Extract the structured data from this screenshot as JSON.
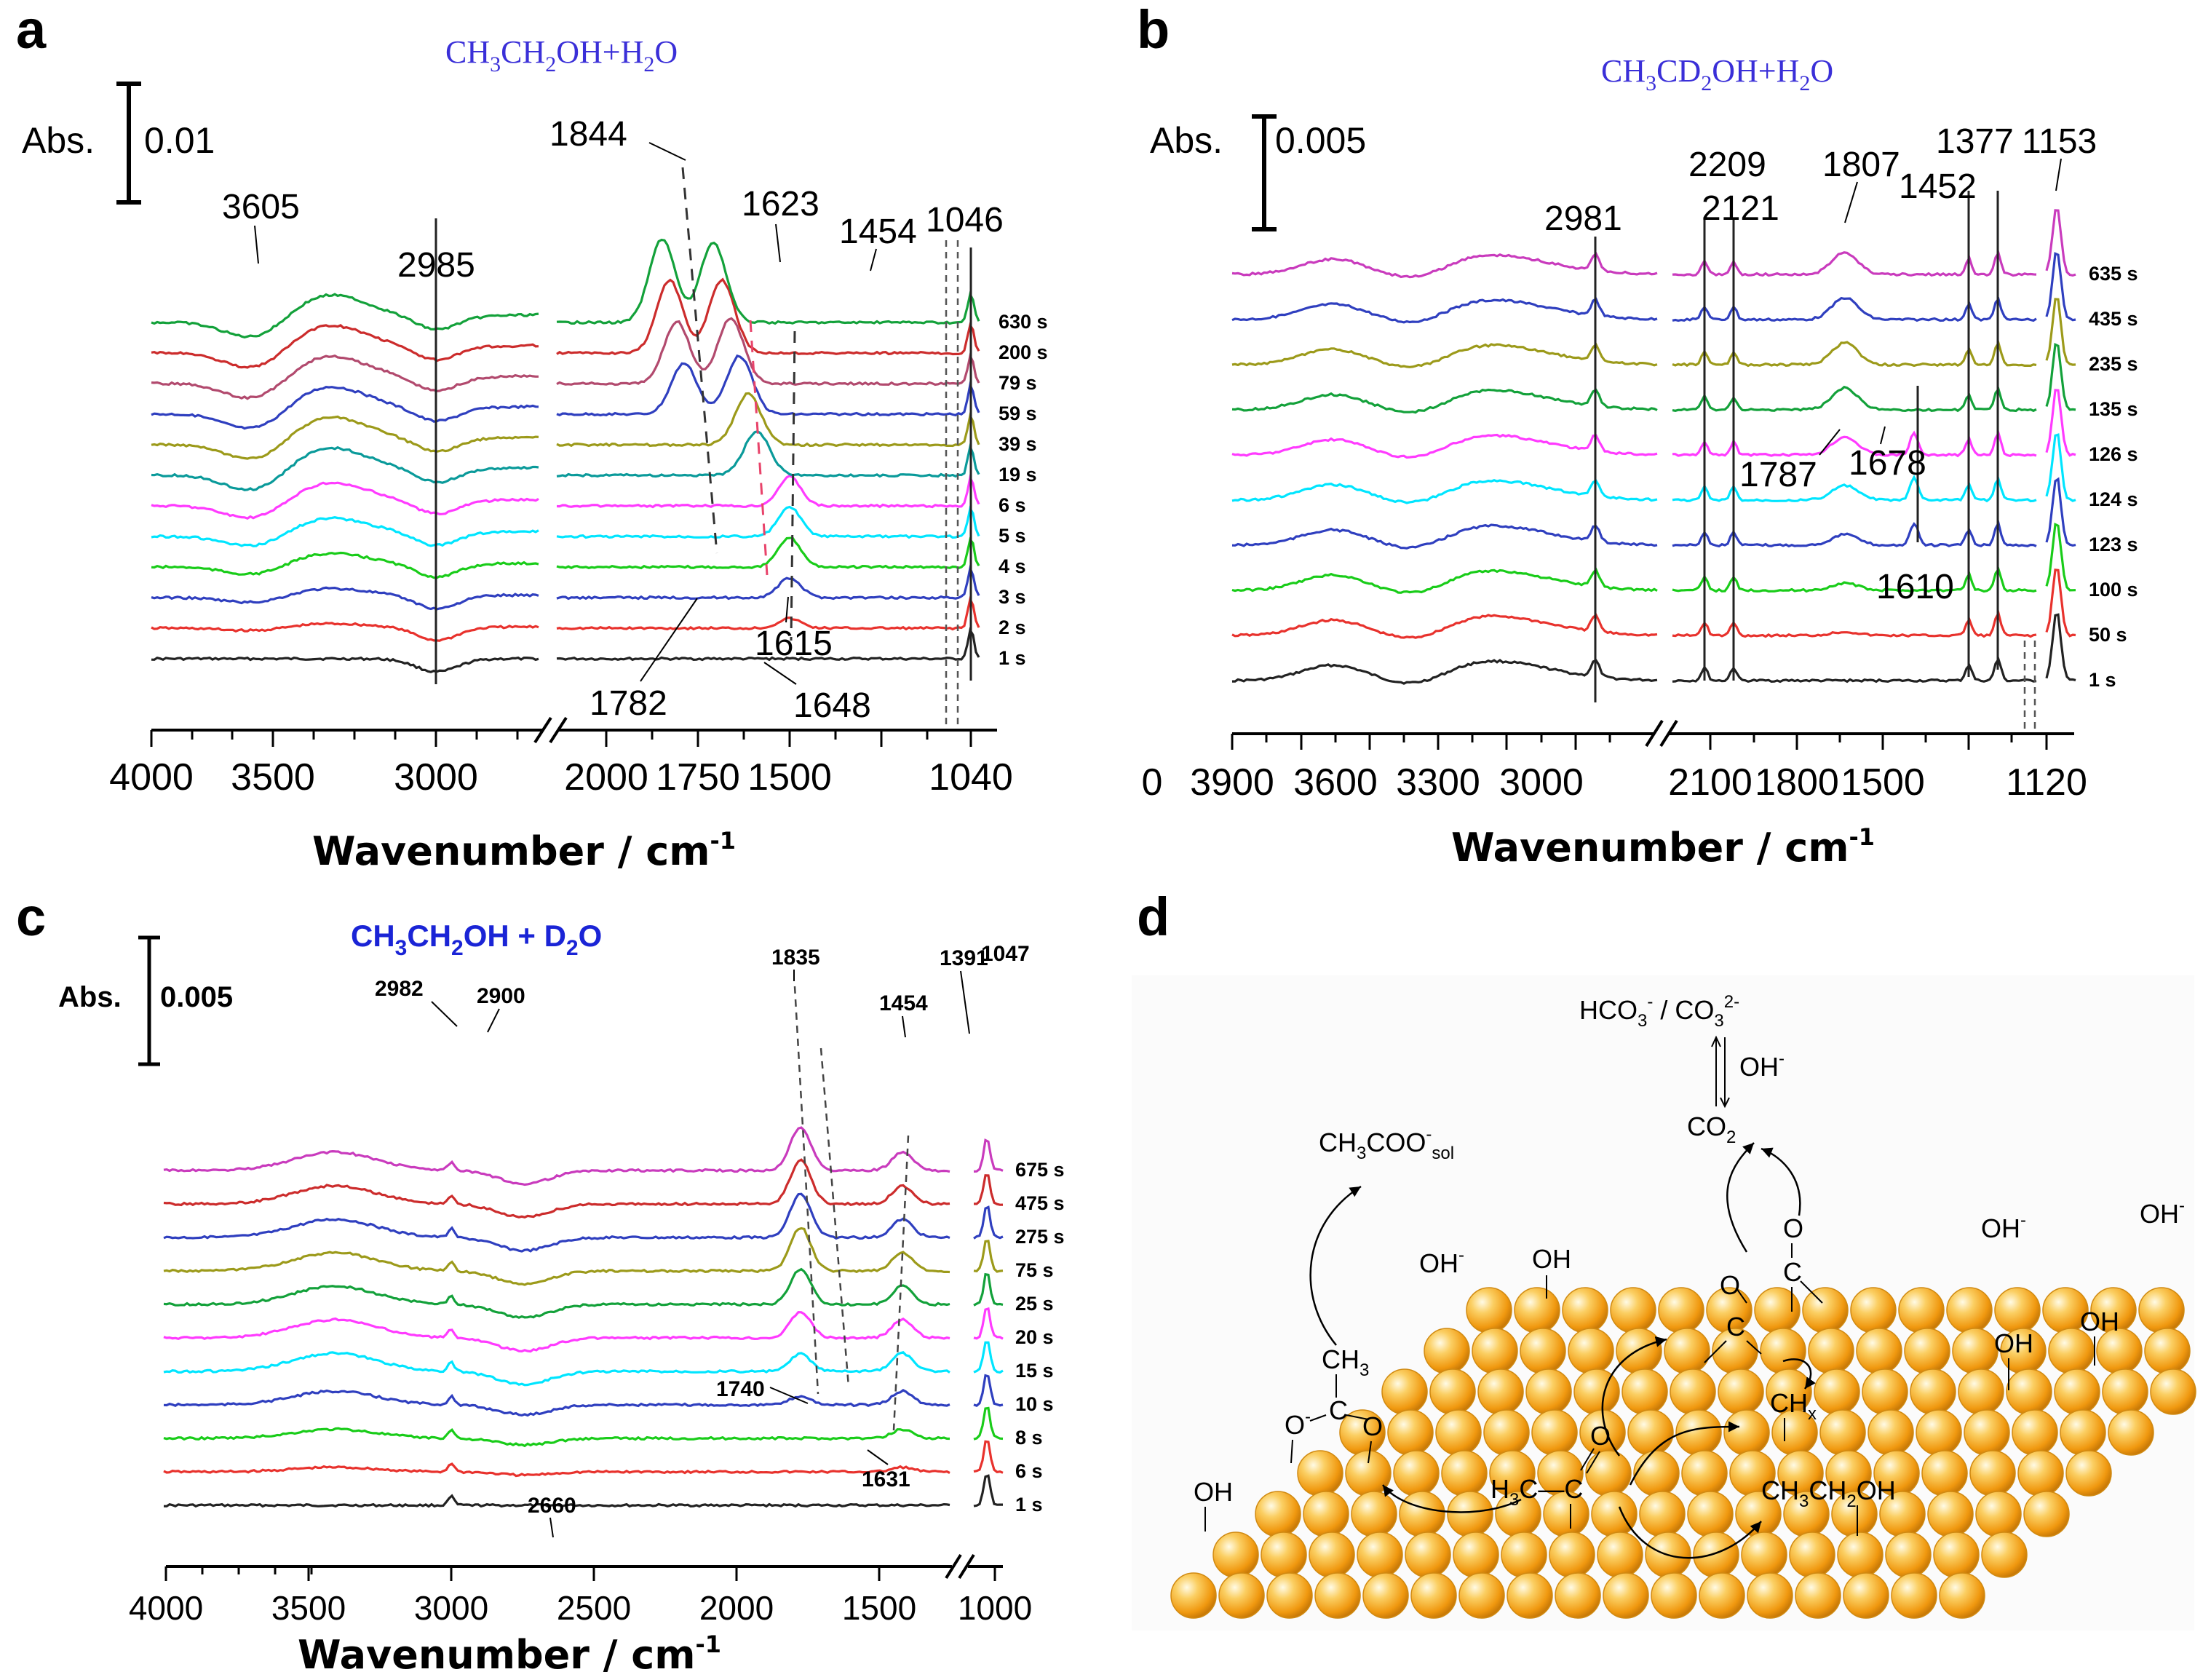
{
  "colors": {
    "title_blue": "#3a2fd8",
    "title_blue_c": "#1a24d6",
    "ball_orange": "#f3a21c",
    "trace_colors": [
      "#222222",
      "#e8322d",
      "#2f3fbf",
      "#19cc19",
      "#00e5ff",
      "#ff3bff",
      "#0a9a9a",
      "#9c9a1a",
      "#2f3fbf",
      "#b24a6e",
      "#cc2c2c",
      "#13a13a",
      "#c93bbd"
    ]
  },
  "chart_data": [
    {
      "id": "a",
      "type": "line",
      "panel_label": "a",
      "title": {
        "pre": "CH",
        "s1": "3",
        "m1": "CH",
        "s2": "2",
        "m2": "OH+H",
        "s3": "2",
        "post": "O"
      },
      "xlabel": {
        "base": "Wavenumber / cm",
        "sup": "-1"
      },
      "ylabel": "Abs.",
      "scale_bar": "0.01",
      "x_segments": [
        [
          4000,
          2400
        ],
        [
          2050,
          1040
        ]
      ],
      "x_ticks": [
        "4000",
        "3500",
        "3000",
        "2000",
        "1750",
        "1500",
        "1040"
      ],
      "series_labels": [
        "1 s",
        "2 s",
        "3 s",
        "4 s",
        "5 s",
        "6 s",
        "19 s",
        "39 s",
        "59 s",
        "79 s",
        "200 s",
        "630 s"
      ],
      "series_colors": [
        "#222222",
        "#e8322d",
        "#2f3fbf",
        "#19cc19",
        "#00e5ff",
        "#ff3bff",
        "#0a9a9a",
        "#9c9a1a",
        "#2f3fbf",
        "#b24a6e",
        "#cc2c2c",
        "#13a13a"
      ],
      "annotations": [
        "3605",
        "2985",
        "1844",
        "1623",
        "1454",
        "1046",
        "1782",
        "1648",
        "1615"
      ]
    },
    {
      "id": "b",
      "type": "line",
      "panel_label": "b",
      "title": {
        "pre": "CH",
        "s1": "3",
        "m1": "CD",
        "s2": "2",
        "m2": "OH+H",
        "s3": "2",
        "post": "O"
      },
      "xlabel": {
        "base": "Wavenumber / cm",
        "sup": "-1"
      },
      "ylabel": "Abs.",
      "scale_bar": "0.005",
      "x_segments": [
        [
          4000,
          2800
        ],
        [
          2200,
          1120
        ]
      ],
      "x_ticks": [
        "0",
        "3900",
        "3600",
        "3300",
        "3000",
        "2100",
        "1800",
        "1500",
        "1120"
      ],
      "series_labels": [
        "1 s",
        "50 s",
        "100 s",
        "123 s",
        "124 s",
        "126 s",
        "135 s",
        "235 s",
        "435 s",
        "635 s"
      ],
      "series_colors": [
        "#222222",
        "#e8322d",
        "#19cc19",
        "#2f3fbf",
        "#00e5ff",
        "#ff3bff",
        "#13a13a",
        "#9c9a1a",
        "#2f3fbf",
        "#c93bbd"
      ],
      "annotations": [
        "2981",
        "2209",
        "2121",
        "1807",
        "1452",
        "1377",
        "1153",
        "1787",
        "1678",
        "1610"
      ]
    },
    {
      "id": "c",
      "type": "line",
      "panel_label": "c",
      "title": {
        "pre": "CH",
        "s1": "3",
        "m1": "CH",
        "s2": "2",
        "m2": "OH + D",
        "s3": "2",
        "post": "O"
      },
      "xlabel": {
        "base": "Wavenumber / cm",
        "sup": "-1"
      },
      "ylabel": "Abs.",
      "scale_bar": "0.005",
      "x_segments": [
        [
          4000,
          1300
        ],
        [
          1130,
          1000
        ]
      ],
      "x_ticks": [
        "4000",
        "3500",
        "3000",
        "2500",
        "2000",
        "1500",
        "1000"
      ],
      "series_labels": [
        "1 s",
        "6 s",
        "8 s",
        "10 s",
        "15 s",
        "20 s",
        "25 s",
        "75 s",
        "275 s",
        "475 s",
        "675 s"
      ],
      "series_colors": [
        "#222222",
        "#e8322d",
        "#19cc19",
        "#2f3fbf",
        "#00e5ff",
        "#ff3bff",
        "#13a13a",
        "#9c9a1a",
        "#2f3fbf",
        "#cc2c2c",
        "#c93bbd"
      ],
      "annotations": [
        "2982",
        "2900",
        "1835",
        "1454",
        "1391",
        "1047",
        "1740",
        "1631",
        "2660"
      ]
    }
  ],
  "scheme": {
    "panel_label": "d",
    "hco3": {
      "a": "HCO",
      "b": "3",
      "c": "-",
      "d": " / CO",
      "e": "3",
      "f": "2-"
    },
    "oh_minus": {
      "a": "OH",
      "b": "-"
    },
    "co2": {
      "a": "CO",
      "b": "2"
    },
    "acetate": {
      "a": "CH",
      "b": "3",
      "c": "COO",
      "d": "-",
      "e": "sol"
    },
    "oh": "OH",
    "ch3": {
      "a": "CH",
      "b": "3"
    },
    "chx": {
      "a": "CH",
      "b": "x"
    },
    "ethanol": {
      "a": "CH",
      "b": "3",
      "c": "CH",
      "d": "2",
      "e": "OH"
    },
    "acetyl": {
      "a": "H",
      "b": "3",
      "c": "C—C"
    },
    "o": "O",
    "c": "C",
    "ominus": {
      "a": "O",
      "b": "-"
    }
  }
}
